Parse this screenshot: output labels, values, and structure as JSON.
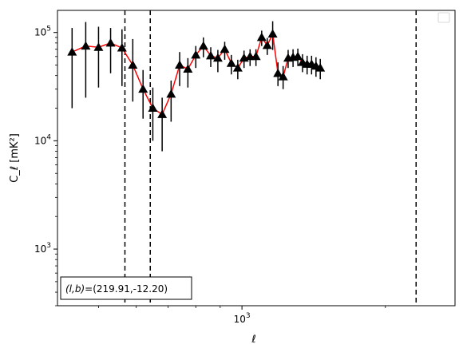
{
  "chart_data": {
    "type": "scatter",
    "xscale": "log",
    "yscale": "log",
    "xlim": [
      410,
      2800
    ],
    "ylim": [
      300,
      160000
    ],
    "xlabel": "ℓ",
    "ylabel": "C_ℓ [mK²]",
    "x_tick_labels": [
      {
        "value": 1000,
        "base": "10",
        "exp": "3"
      }
    ],
    "y_tick_labels": [
      {
        "value": 1000,
        "base": "10",
        "exp": "3"
      },
      {
        "value": 10000,
        "base": "10",
        "exp": "4"
      },
      {
        "value": 100000,
        "base": "10",
        "exp": "5"
      }
    ],
    "legend": "top-right (empty)",
    "grid": false,
    "annotation": {
      "label": "(l,b)",
      "value": "=(219.91,-12.20)",
      "position": "bottom-left"
    },
    "vertical_lines": [
      {
        "x": 568,
        "style": "dashed",
        "color": "#000000"
      },
      {
        "x": 642,
        "style": "dashed",
        "color": "#000000"
      },
      {
        "x": 2320,
        "style": "dashed",
        "color": "#000000"
      }
    ],
    "series": [
      {
        "color": "#ff0000",
        "marker": "triangle",
        "marker_color": "#000000",
        "errorbar_color": "#000000",
        "line_style": "solid",
        "x": [
          440,
          470,
          500,
          530,
          560,
          590,
          620,
          650,
          680,
          710,
          740,
          770,
          800,
          830,
          860,
          890,
          920,
          950,
          980,
          1010,
          1040,
          1070,
          1100,
          1130,
          1160,
          1190,
          1220,
          1250,
          1280,
          1310,
          1340,
          1370,
          1400,
          1430,
          1460
        ],
        "y": [
          66000,
          75000,
          73000,
          80000,
          72000,
          50000,
          30000,
          20000,
          17500,
          27000,
          50000,
          46000,
          62000,
          75000,
          61000,
          58000,
          70000,
          52000,
          47000,
          58000,
          60000,
          60000,
          90000,
          76000,
          97000,
          42000,
          39000,
          58000,
          59000,
          60000,
          53000,
          51000,
          51000,
          49000,
          47000
        ],
        "yerr_low": [
          46000,
          50000,
          42000,
          38000,
          40000,
          27000,
          14000,
          10000,
          9500,
          12000,
          18000,
          15000,
          15000,
          16000,
          13000,
          15000,
          14000,
          11000,
          10000,
          11000,
          11000,
          11000,
          15000,
          14000,
          28000,
          10000,
          9000,
          11000,
          11000,
          11000,
          10000,
          10000,
          10000,
          10000,
          10000
        ],
        "yerr_high": [
          44000,
          50000,
          40000,
          30000,
          35000,
          37000,
          15000,
          11000,
          7500,
          9000,
          16000,
          12000,
          13000,
          15000,
          12000,
          11000,
          12000,
          10000,
          9000,
          10000,
          10000,
          10000,
          14000,
          13000,
          30000,
          11000,
          10000,
          11000,
          11000,
          11000,
          10000,
          10000,
          10000,
          10000,
          10000
        ]
      }
    ]
  }
}
